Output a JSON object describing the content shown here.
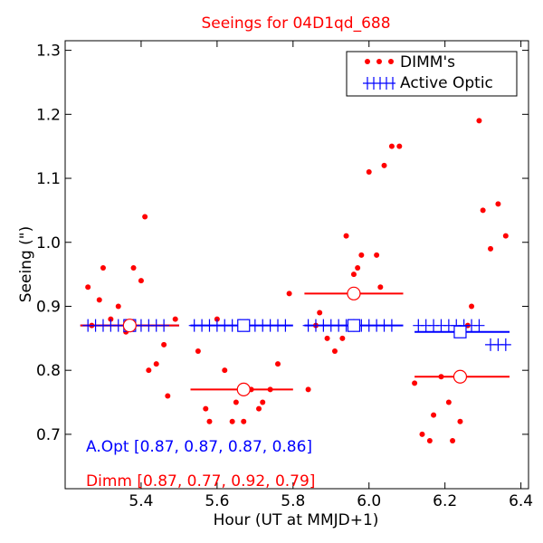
{
  "chart_data": {
    "type": "scatter",
    "title": "Seeings for 04D1qd_688",
    "xlabel": "Hour (UT at MMJD+1)",
    "ylabel": "Seeing (\")",
    "xlim": [
      5.2,
      6.42
    ],
    "ylim": [
      0.615,
      1.315
    ],
    "xticks": [
      5.4,
      5.6,
      5.8,
      6.0,
      6.2,
      6.4
    ],
    "xtick_labels": [
      "5.4",
      "5.6",
      "5.8",
      "6.0",
      "6.2",
      "6.4"
    ],
    "yticks": [
      0.7,
      0.8,
      0.9,
      1.0,
      1.1,
      1.2,
      1.3
    ],
    "ytick_labels": [
      "0.7",
      "0.8",
      "0.9",
      "1.0",
      "1.1",
      "1.2",
      "1.3"
    ],
    "grid": false,
    "legend_position": "top-right",
    "series": [
      {
        "name": "DIMM's",
        "marker": "dot",
        "color": "#ff0000",
        "points": [
          [
            5.26,
            0.93
          ],
          [
            5.27,
            0.87
          ],
          [
            5.29,
            0.91
          ],
          [
            5.3,
            0.96
          ],
          [
            5.32,
            0.88
          ],
          [
            5.34,
            0.9
          ],
          [
            5.36,
            0.86
          ],
          [
            5.38,
            0.96
          ],
          [
            5.4,
            0.94
          ],
          [
            5.41,
            1.04
          ],
          [
            5.42,
            0.8
          ],
          [
            5.44,
            0.81
          ],
          [
            5.46,
            0.84
          ],
          [
            5.47,
            0.76
          ],
          [
            5.49,
            0.88
          ],
          [
            5.55,
            0.83
          ],
          [
            5.57,
            0.74
          ],
          [
            5.58,
            0.72
          ],
          [
            5.6,
            0.88
          ],
          [
            5.62,
            0.8
          ],
          [
            5.64,
            0.72
          ],
          [
            5.65,
            0.75
          ],
          [
            5.67,
            0.72
          ],
          [
            5.69,
            0.77
          ],
          [
            5.71,
            0.74
          ],
          [
            5.72,
            0.75
          ],
          [
            5.74,
            0.77
          ],
          [
            5.76,
            0.81
          ],
          [
            5.79,
            0.92
          ],
          [
            5.84,
            0.77
          ],
          [
            5.86,
            0.87
          ],
          [
            5.87,
            0.89
          ],
          [
            5.89,
            0.85
          ],
          [
            5.91,
            0.83
          ],
          [
            5.93,
            0.85
          ],
          [
            5.94,
            1.01
          ],
          [
            5.96,
            0.95
          ],
          [
            5.97,
            0.96
          ],
          [
            5.98,
            0.98
          ],
          [
            6.0,
            1.11
          ],
          [
            6.02,
            0.98
          ],
          [
            6.03,
            0.93
          ],
          [
            6.04,
            1.12
          ],
          [
            6.06,
            1.15
          ],
          [
            6.08,
            1.15
          ],
          [
            6.12,
            0.78
          ],
          [
            6.14,
            0.7
          ],
          [
            6.16,
            0.69
          ],
          [
            6.17,
            0.73
          ],
          [
            6.19,
            0.79
          ],
          [
            6.21,
            0.75
          ],
          [
            6.22,
            0.69
          ],
          [
            6.24,
            0.72
          ],
          [
            6.26,
            0.87
          ],
          [
            6.27,
            0.9
          ],
          [
            6.29,
            1.19
          ],
          [
            6.3,
            1.05
          ],
          [
            6.32,
            0.99
          ],
          [
            6.34,
            1.06
          ],
          [
            6.36,
            1.01
          ]
        ]
      },
      {
        "name": "Active Optic",
        "marker": "plus",
        "color": "#0000ff",
        "points": [
          [
            5.26,
            0.87
          ],
          [
            5.28,
            0.87
          ],
          [
            5.3,
            0.87
          ],
          [
            5.32,
            0.87
          ],
          [
            5.34,
            0.87
          ],
          [
            5.36,
            0.87
          ],
          [
            5.38,
            0.87
          ],
          [
            5.4,
            0.87
          ],
          [
            5.42,
            0.87
          ],
          [
            5.44,
            0.87
          ],
          [
            5.46,
            0.87
          ],
          [
            5.54,
            0.87
          ],
          [
            5.56,
            0.87
          ],
          [
            5.58,
            0.87
          ],
          [
            5.6,
            0.87
          ],
          [
            5.62,
            0.87
          ],
          [
            5.64,
            0.87
          ],
          [
            5.66,
            0.87
          ],
          [
            5.68,
            0.87
          ],
          [
            5.7,
            0.87
          ],
          [
            5.72,
            0.87
          ],
          [
            5.74,
            0.87
          ],
          [
            5.76,
            0.87
          ],
          [
            5.78,
            0.87
          ],
          [
            5.84,
            0.87
          ],
          [
            5.86,
            0.87
          ],
          [
            5.88,
            0.87
          ],
          [
            5.9,
            0.87
          ],
          [
            5.92,
            0.87
          ],
          [
            5.94,
            0.87
          ],
          [
            5.96,
            0.87
          ],
          [
            5.98,
            0.87
          ],
          [
            6.0,
            0.87
          ],
          [
            6.02,
            0.87
          ],
          [
            6.04,
            0.87
          ],
          [
            6.06,
            0.87
          ],
          [
            6.13,
            0.87
          ],
          [
            6.15,
            0.87
          ],
          [
            6.17,
            0.87
          ],
          [
            6.19,
            0.87
          ],
          [
            6.21,
            0.87
          ],
          [
            6.23,
            0.87
          ],
          [
            6.25,
            0.87
          ],
          [
            6.27,
            0.87
          ],
          [
            6.29,
            0.87
          ],
          [
            6.32,
            0.84
          ],
          [
            6.34,
            0.84
          ],
          [
            6.36,
            0.84
          ]
        ]
      }
    ],
    "medians": [
      {
        "series": "Active Optic",
        "x_start": 5.24,
        "x_end": 5.5,
        "x": 5.37,
        "value": 0.87,
        "color": "#0000ff"
      },
      {
        "series": "Active Optic",
        "x_start": 5.53,
        "x_end": 5.8,
        "x": 5.67,
        "value": 0.87,
        "color": "#0000ff"
      },
      {
        "series": "Active Optic",
        "x_start": 5.83,
        "x_end": 6.09,
        "x": 5.96,
        "value": 0.87,
        "color": "#0000ff"
      },
      {
        "series": "Active Optic",
        "x_start": 6.12,
        "x_end": 6.37,
        "x": 6.24,
        "value": 0.86,
        "color": "#0000ff"
      },
      {
        "series": "DIMM's",
        "x_start": 5.24,
        "x_end": 5.5,
        "x": 5.37,
        "value": 0.87,
        "color": "#ff0000"
      },
      {
        "series": "DIMM's",
        "x_start": 5.53,
        "x_end": 5.8,
        "x": 5.67,
        "value": 0.77,
        "color": "#ff0000"
      },
      {
        "series": "DIMM's",
        "x_start": 5.83,
        "x_end": 6.09,
        "x": 5.96,
        "value": 0.92,
        "color": "#ff0000"
      },
      {
        "series": "DIMM's",
        "x_start": 6.12,
        "x_end": 6.37,
        "x": 6.24,
        "value": 0.79,
        "color": "#ff0000"
      }
    ],
    "annotations": [
      {
        "text": "A.Opt [0.87, 0.87, 0.87, 0.86]",
        "color": "#0000ff"
      },
      {
        "text": "Dimm [0.87, 0.77, 0.92, 0.79]",
        "color": "#ff0000"
      }
    ]
  }
}
